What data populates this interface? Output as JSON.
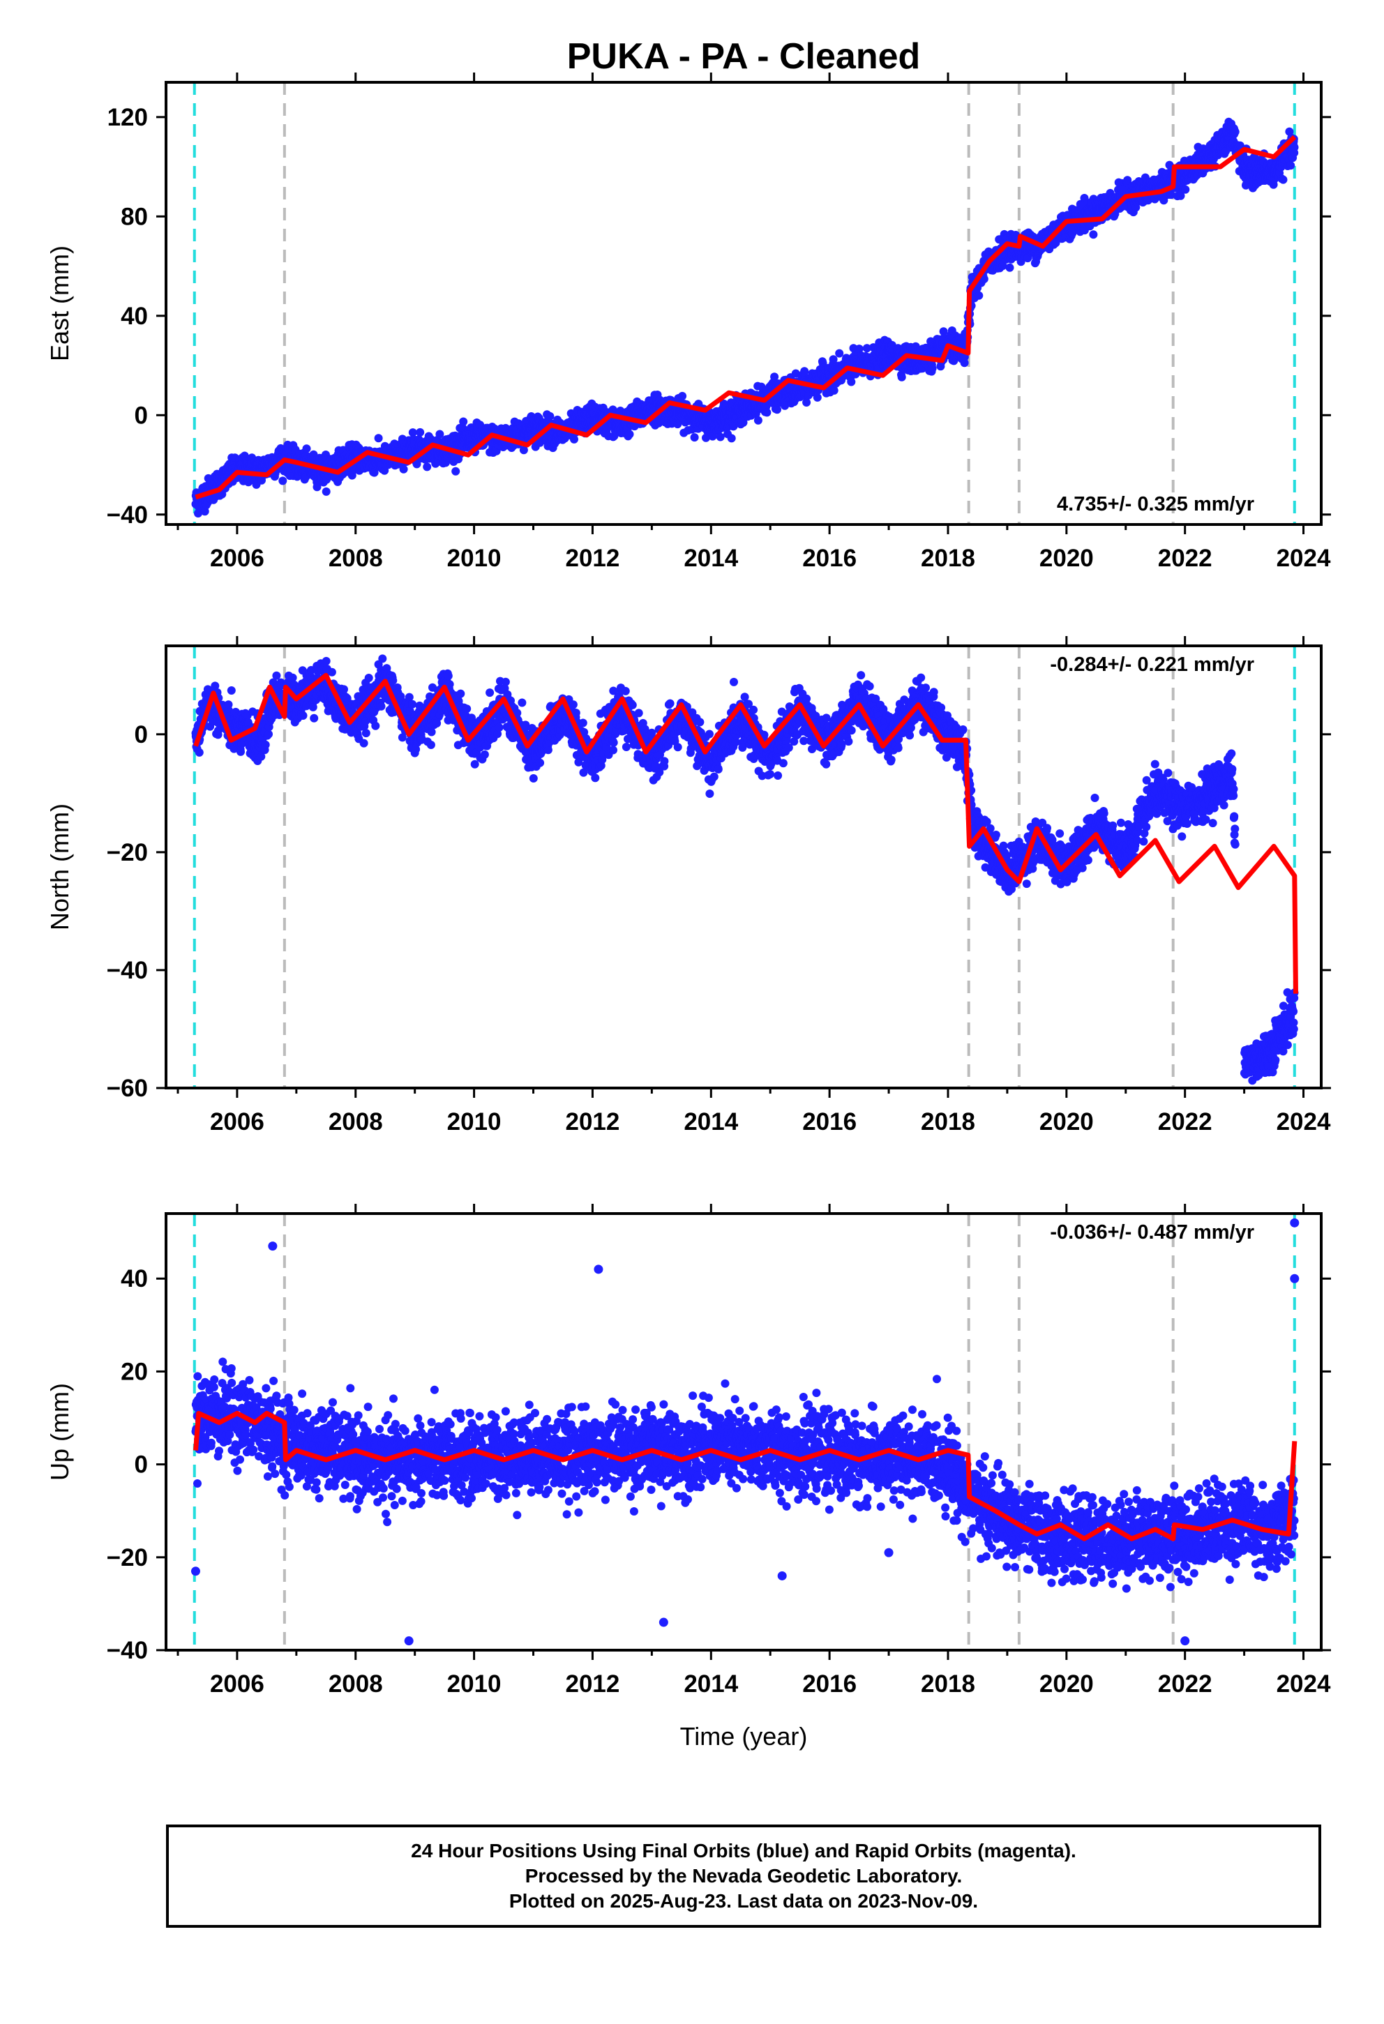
{
  "title": "PUKA  - PA - Cleaned",
  "xlabel": "Time (year)",
  "footer": [
    "24 Hour Positions Using Final Orbits (blue) and Rapid Orbits (magenta).",
    "Processed by the Nevada Geodetic Laboratory.",
    "Plotted on 2025-Aug-23. Last data on 2023-Nov-09."
  ],
  "colors": {
    "points": "#1f1fff",
    "model": "#ff0000",
    "gray_lines": "#bbbbbb",
    "cyan_lines": "#22dddd"
  },
  "chart_data": [
    {
      "type": "scatter",
      "ylabel": "East (mm)",
      "rate_text": "4.735+/- 0.325 mm/yr",
      "xlim": [
        2004.8,
        2024.3
      ],
      "ylim": [
        -44,
        134
      ],
      "xticks": [
        2006,
        2008,
        2010,
        2012,
        2014,
        2016,
        2018,
        2020,
        2022,
        2024
      ],
      "yticks": [
        -40,
        0,
        40,
        80,
        120
      ],
      "cyan_lines": [
        2005.28,
        2023.85
      ],
      "gray_lines": [
        2006.8,
        2018.35,
        2019.2,
        2021.8
      ],
      "series": [
        {
          "values": [
            [
              2005.3,
              -35
            ],
            [
              2005.6,
              -29
            ],
            [
              2006.0,
              -22
            ],
            [
              2006.4,
              -22
            ],
            [
              2006.8,
              -17
            ],
            [
              2007.0,
              -20
            ],
            [
              2007.5,
              -22
            ],
            [
              2008.0,
              -17
            ],
            [
              2008.5,
              -18
            ],
            [
              2009.0,
              -13
            ],
            [
              2009.5,
              -14
            ],
            [
              2010.0,
              -9
            ],
            [
              2010.5,
              -10
            ],
            [
              2011.0,
              -5
            ],
            [
              2011.5,
              -7
            ],
            [
              2012.0,
              -1
            ],
            [
              2012.5,
              -4
            ],
            [
              2013.0,
              3
            ],
            [
              2013.5,
              1
            ],
            [
              2014.0,
              -3
            ],
            [
              2014.5,
              2
            ],
            [
              2015.0,
              8
            ],
            [
              2015.5,
              10
            ],
            [
              2016.0,
              16
            ],
            [
              2016.5,
              20
            ],
            [
              2017.0,
              24
            ],
            [
              2017.5,
              22
            ],
            [
              2018.0,
              27
            ],
            [
              2018.3,
              26
            ],
            [
              2018.4,
              50
            ],
            [
              2018.7,
              62
            ],
            [
              2019.0,
              68
            ],
            [
              2019.5,
              68
            ],
            [
              2020.0,
              77
            ],
            [
              2020.5,
              82
            ],
            [
              2021.0,
              88
            ],
            [
              2021.5,
              91
            ],
            [
              2022.0,
              97
            ],
            [
              2022.4,
              104
            ],
            [
              2022.8,
              113
            ],
            [
              2023.0,
              98
            ],
            [
              2023.5,
              98
            ],
            [
              2023.85,
              108
            ]
          ]
        }
      ],
      "model": [
        [
          2005.3,
          -33
        ],
        [
          2005.7,
          -30
        ],
        [
          2006.0,
          -23
        ],
        [
          2006.5,
          -24
        ],
        [
          2006.8,
          -18
        ],
        [
          2007.0,
          -19
        ],
        [
          2007.7,
          -23
        ],
        [
          2008.2,
          -15
        ],
        [
          2008.9,
          -19
        ],
        [
          2009.3,
          -12
        ],
        [
          2009.9,
          -16
        ],
        [
          2010.3,
          -8
        ],
        [
          2010.9,
          -12
        ],
        [
          2011.3,
          -4
        ],
        [
          2011.9,
          -8
        ],
        [
          2012.3,
          0
        ],
        [
          2012.9,
          -3
        ],
        [
          2013.3,
          5
        ],
        [
          2013.9,
          2
        ],
        [
          2014.3,
          9
        ],
        [
          2014.9,
          6
        ],
        [
          2015.3,
          14
        ],
        [
          2015.9,
          11
        ],
        [
          2016.3,
          19
        ],
        [
          2016.9,
          16
        ],
        [
          2017.3,
          24
        ],
        [
          2017.9,
          22
        ],
        [
          2018.0,
          28
        ],
        [
          2018.34,
          25
        ],
        [
          2018.36,
          50
        ],
        [
          2018.7,
          62
        ],
        [
          2019.0,
          69
        ],
        [
          2019.2,
          68
        ],
        [
          2019.22,
          72
        ],
        [
          2019.6,
          68
        ],
        [
          2020.0,
          78
        ],
        [
          2020.6,
          79
        ],
        [
          2021.0,
          88
        ],
        [
          2021.6,
          90
        ],
        [
          2021.8,
          92
        ],
        [
          2021.82,
          100
        ],
        [
          2022.6,
          100
        ],
        [
          2023.0,
          107
        ],
        [
          2023.5,
          104
        ],
        [
          2023.85,
          112
        ]
      ]
    },
    {
      "type": "scatter",
      "ylabel": "North (mm)",
      "rate_text": "-0.284+/- 0.221 mm/yr",
      "xlim": [
        2004.8,
        2024.3
      ],
      "ylim": [
        -60,
        15
      ],
      "xticks": [
        2006,
        2008,
        2010,
        2012,
        2014,
        2016,
        2018,
        2020,
        2022,
        2024
      ],
      "yticks": [
        -60,
        -40,
        -20,
        0
      ],
      "cyan_lines": [
        2005.28,
        2023.85
      ],
      "gray_lines": [
        2006.8,
        2018.35,
        2019.2,
        2021.8
      ],
      "series": [
        {
          "values": [
            [
              2005.3,
              -2
            ],
            [
              2005.5,
              6
            ],
            [
              2005.9,
              1
            ],
            [
              2006.4,
              -1
            ],
            [
              2006.6,
              6
            ],
            [
              2007.0,
              6
            ],
            [
              2007.4,
              9
            ],
            [
              2008.0,
              2
            ],
            [
              2008.5,
              9
            ],
            [
              2009.0,
              0
            ],
            [
              2009.5,
              7
            ],
            [
              2010.0,
              -1
            ],
            [
              2010.5,
              5
            ],
            [
              2011.0,
              -4
            ],
            [
              2011.5,
              4
            ],
            [
              2012.0,
              -4
            ],
            [
              2012.5,
              4
            ],
            [
              2013.0,
              -4
            ],
            [
              2013.5,
              3
            ],
            [
              2014.0,
              -5
            ],
            [
              2014.5,
              3
            ],
            [
              2015.0,
              -4
            ],
            [
              2015.5,
              4
            ],
            [
              2016.0,
              -2
            ],
            [
              2016.5,
              6
            ],
            [
              2017.0,
              -1
            ],
            [
              2017.5,
              6
            ],
            [
              2018.0,
              0
            ],
            [
              2018.3,
              -3
            ],
            [
              2018.4,
              -15
            ],
            [
              2018.7,
              -19
            ],
            [
              2019.0,
              -24
            ],
            [
              2019.5,
              -18
            ],
            [
              2020.0,
              -22
            ],
            [
              2020.5,
              -16
            ],
            [
              2021.0,
              -20
            ],
            [
              2021.5,
              -10
            ],
            [
              2022.0,
              -13
            ],
            [
              2022.6,
              -8
            ],
            [
              2022.8,
              -7
            ],
            [
              2023.0,
              -56
            ],
            [
              2023.4,
              -54
            ],
            [
              2023.85,
              -47
            ]
          ]
        }
      ],
      "model": [
        [
          2005.3,
          -2
        ],
        [
          2005.6,
          7
        ],
        [
          2005.9,
          -1
        ],
        [
          2006.3,
          1
        ],
        [
          2006.55,
          8
        ],
        [
          2006.8,
          3
        ],
        [
          2006.82,
          8
        ],
        [
          2007.0,
          6
        ],
        [
          2007.5,
          10
        ],
        [
          2007.9,
          2
        ],
        [
          2008.5,
          9
        ],
        [
          2008.9,
          0
        ],
        [
          2009.5,
          8
        ],
        [
          2009.9,
          -1
        ],
        [
          2010.5,
          6
        ],
        [
          2010.9,
          -2
        ],
        [
          2011.5,
          6
        ],
        [
          2011.9,
          -3
        ],
        [
          2012.5,
          6
        ],
        [
          2012.9,
          -3
        ],
        [
          2013.5,
          5
        ],
        [
          2013.9,
          -3
        ],
        [
          2014.5,
          5
        ],
        [
          2014.9,
          -2
        ],
        [
          2015.5,
          5
        ],
        [
          2015.9,
          -2
        ],
        [
          2016.5,
          5
        ],
        [
          2016.9,
          -2
        ],
        [
          2017.5,
          5
        ],
        [
          2017.9,
          -1
        ],
        [
          2018.3,
          -1
        ],
        [
          2018.36,
          -19
        ],
        [
          2018.6,
          -16
        ],
        [
          2019.0,
          -23
        ],
        [
          2019.2,
          -25
        ],
        [
          2019.5,
          -16
        ],
        [
          2019.9,
          -23
        ],
        [
          2020.5,
          -17
        ],
        [
          2020.9,
          -24
        ],
        [
          2021.5,
          -18
        ],
        [
          2021.9,
          -25
        ],
        [
          2022.5,
          -19
        ],
        [
          2022.9,
          -26
        ],
        [
          2023.5,
          -19
        ],
        [
          2023.85,
          -24
        ],
        [
          2023.87,
          -44
        ]
      ]
    },
    {
      "type": "scatter",
      "ylabel": "Up (mm)",
      "rate_text": "-0.036+/- 0.487 mm/yr",
      "xlim": [
        2004.8,
        2024.3
      ],
      "ylim": [
        -40,
        54
      ],
      "xticks": [
        2006,
        2008,
        2010,
        2012,
        2014,
        2016,
        2018,
        2020,
        2022,
        2024
      ],
      "yticks": [
        -40,
        -20,
        0,
        20,
        40
      ],
      "cyan_lines": [
        2005.28,
        2023.85
      ],
      "gray_lines": [
        2006.8,
        2018.35,
        2019.2,
        2021.8
      ],
      "series": [
        {
          "values": [
            [
              2005.3,
              10
            ],
            [
              2005.6,
              11
            ],
            [
              2006.0,
              10
            ],
            [
              2006.4,
              8
            ],
            [
              2006.8,
              6
            ],
            [
              2007.2,
              3
            ],
            [
              2007.6,
              3
            ],
            [
              2008.0,
              1
            ],
            [
              2008.5,
              0
            ],
            [
              2009.0,
              1
            ],
            [
              2009.5,
              1
            ],
            [
              2010.0,
              1
            ],
            [
              2010.5,
              2
            ],
            [
              2011.0,
              2
            ],
            [
              2011.5,
              2
            ],
            [
              2012.0,
              2
            ],
            [
              2012.5,
              3
            ],
            [
              2013.0,
              3
            ],
            [
              2013.5,
              3
            ],
            [
              2014.0,
              4
            ],
            [
              2014.5,
              3
            ],
            [
              2015.0,
              3
            ],
            [
              2015.5,
              2
            ],
            [
              2016.0,
              2
            ],
            [
              2016.5,
              1
            ],
            [
              2017.0,
              1
            ],
            [
              2017.5,
              1
            ],
            [
              2018.0,
              0
            ],
            [
              2018.4,
              -7
            ],
            [
              2018.8,
              -11
            ],
            [
              2019.2,
              -13
            ],
            [
              2019.6,
              -15
            ],
            [
              2020.0,
              -16
            ],
            [
              2020.5,
              -16
            ],
            [
              2021.0,
              -16
            ],
            [
              2021.5,
              -15
            ],
            [
              2022.0,
              -15
            ],
            [
              2022.5,
              -13
            ],
            [
              2023.0,
              -12
            ],
            [
              2023.4,
              -15
            ],
            [
              2023.85,
              -10
            ]
          ]
        },
        {
          "values": [
            [
              2006.6,
              47
            ],
            [
              2012.1,
              42
            ],
            [
              2005.3,
              -23
            ],
            [
              2008.9,
              -38
            ],
            [
              2013.2,
              -34
            ],
            [
              2015.2,
              -24
            ],
            [
              2017.0,
              -19
            ],
            [
              2022.0,
              -38
            ],
            [
              2023.85,
              52
            ],
            [
              2023.85,
              40
            ]
          ]
        }
      ],
      "model": [
        [
          2005.3,
          3
        ],
        [
          2005.35,
          11
        ],
        [
          2005.7,
          9
        ],
        [
          2006.0,
          11
        ],
        [
          2006.3,
          9
        ],
        [
          2006.5,
          11
        ],
        [
          2006.8,
          9
        ],
        [
          2006.82,
          1
        ],
        [
          2007.0,
          3
        ],
        [
          2007.5,
          1
        ],
        [
          2008.0,
          3
        ],
        [
          2008.5,
          1
        ],
        [
          2009.0,
          3
        ],
        [
          2009.5,
          1
        ],
        [
          2010.0,
          3
        ],
        [
          2010.5,
          1
        ],
        [
          2011.0,
          3
        ],
        [
          2011.5,
          1
        ],
        [
          2012.0,
          3
        ],
        [
          2012.5,
          1
        ],
        [
          2013.0,
          3
        ],
        [
          2013.5,
          1
        ],
        [
          2014.0,
          3
        ],
        [
          2014.5,
          1
        ],
        [
          2015.0,
          3
        ],
        [
          2015.5,
          1
        ],
        [
          2016.0,
          3
        ],
        [
          2016.5,
          1
        ],
        [
          2017.0,
          3
        ],
        [
          2017.5,
          1
        ],
        [
          2018.0,
          3
        ],
        [
          2018.34,
          2
        ],
        [
          2018.36,
          -7
        ],
        [
          2018.8,
          -10
        ],
        [
          2019.2,
          -13
        ],
        [
          2019.5,
          -15
        ],
        [
          2019.9,
          -13
        ],
        [
          2020.3,
          -16
        ],
        [
          2020.7,
          -13
        ],
        [
          2021.1,
          -16
        ],
        [
          2021.5,
          -14
        ],
        [
          2021.8,
          -16
        ],
        [
          2021.82,
          -13
        ],
        [
          2022.3,
          -14
        ],
        [
          2022.8,
          -12
        ],
        [
          2023.3,
          -14
        ],
        [
          2023.75,
          -15
        ],
        [
          2023.85,
          5
        ]
      ]
    }
  ]
}
